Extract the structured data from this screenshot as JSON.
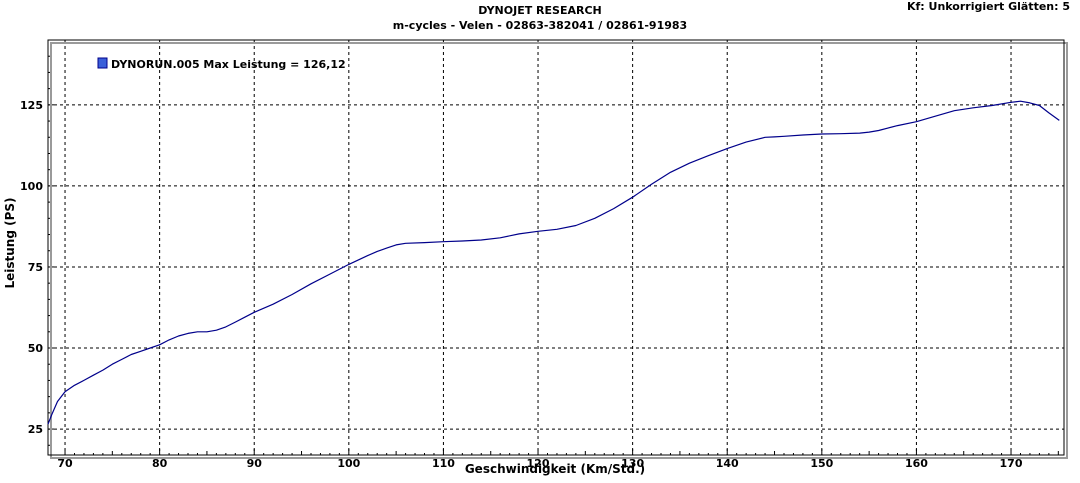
{
  "header": {
    "title": "DYNOJET RESEARCH",
    "subtitle": "m-cycles - Velen - 02863-382041  /  02861-91983",
    "settings": "Kf: Unkorrigiert  Glätten: 5"
  },
  "chart_data": {
    "type": "line",
    "xlabel": "Geschwindigkeit (Km/Std.)",
    "ylabel": "Leistung (PS)",
    "xlim": [
      68.2,
      175.6
    ],
    "ylim": [
      17,
      145
    ],
    "xticks": [
      70,
      80,
      90,
      100,
      110,
      120,
      130,
      140,
      150,
      160,
      170
    ],
    "yticks": [
      25,
      50,
      75,
      100,
      125
    ],
    "grid": true,
    "legend_position": "top-left",
    "series": [
      {
        "name": "DYNORUN.005 Max Leistung = 126,12",
        "color": "#00008b",
        "x": [
          68.2,
          68.6,
          69.2,
          70,
          71,
          72,
          73,
          74,
          75,
          76,
          77,
          78,
          79,
          80,
          81,
          82,
          83,
          84,
          85,
          86,
          87,
          88,
          89,
          90,
          92,
          94,
          96,
          98,
          100,
          102,
          103,
          104,
          105,
          106,
          108,
          110,
          112,
          114,
          116,
          118,
          120,
          122,
          124,
          126,
          128,
          130,
          132,
          134,
          136,
          138,
          140,
          142,
          144,
          145,
          146,
          148,
          150,
          152,
          154,
          155,
          156,
          158,
          160,
          162,
          164,
          166,
          168,
          170,
          171,
          172,
          173,
          174,
          175.1
        ],
        "y": [
          26.5,
          29.5,
          33.5,
          36.5,
          38.5,
          40,
          41.6,
          43.2,
          45,
          46.5,
          48,
          49,
          50,
          51,
          52.5,
          53.7,
          54.5,
          55,
          55,
          55.5,
          56.5,
          58,
          59.5,
          61,
          63.5,
          66.5,
          69.8,
          72.8,
          75.8,
          78.5,
          79.8,
          80.8,
          81.8,
          82.3,
          82.5,
          82.8,
          83,
          83.3,
          84,
          85.2,
          86,
          86.6,
          87.8,
          90,
          93,
          96.5,
          100.5,
          104.2,
          107,
          109.3,
          111.5,
          113.5,
          115,
          115.1,
          115.3,
          115.7,
          116,
          116.1,
          116.3,
          116.6,
          117.1,
          118.6,
          119.8,
          121.5,
          123.2,
          124.1,
          124.8,
          125.8,
          126.12,
          125.6,
          124.8,
          122.5,
          120.2
        ]
      }
    ]
  }
}
